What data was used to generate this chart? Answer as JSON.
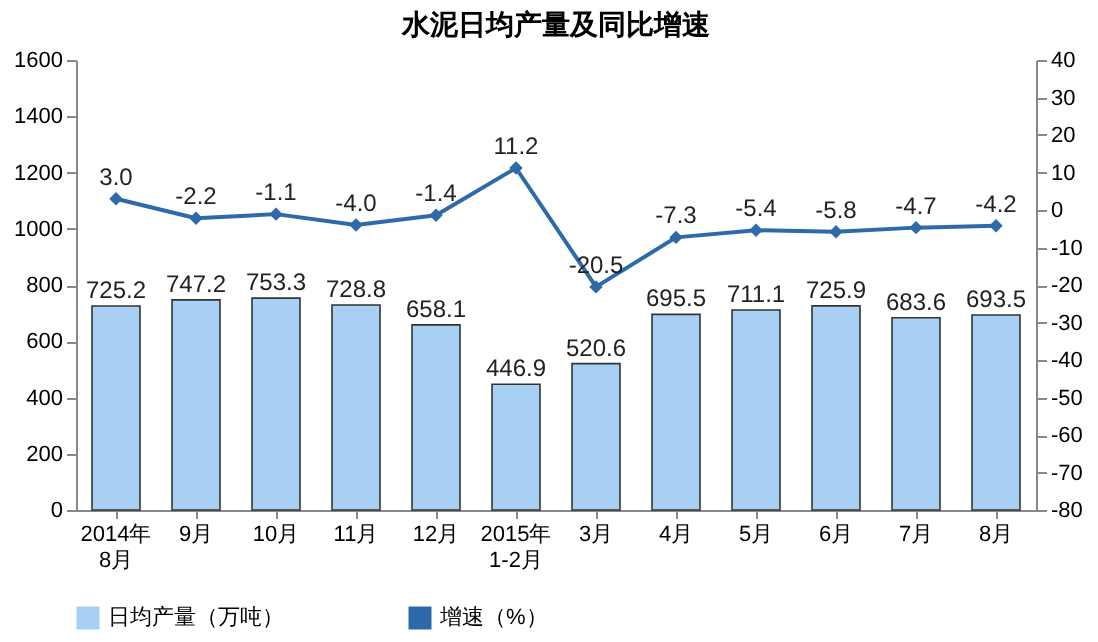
{
  "chart_data": {
    "type": "bar",
    "title": "水泥日均产量及同比增速",
    "categories": [
      "2014年\n8月",
      "9月",
      "10月",
      "11月",
      "12月",
      "2015年\n1-2月",
      "3月",
      "4月",
      "5月",
      "6月",
      "7月",
      "8月"
    ],
    "series": [
      {
        "name": "日均产量（万吨）",
        "color": "#a8d0f5",
        "values": [
          725.2,
          747.2,
          753.3,
          728.8,
          658.1,
          446.9,
          520.6,
          695.5,
          711.1,
          725.9,
          683.6,
          693.5
        ],
        "value_labels": [
          "725.2",
          "747.2",
          "753.3",
          "728.8",
          "658.1",
          "446.9",
          "520.6",
          "695.5",
          "711.1",
          "725.9",
          "683.6",
          "693.5"
        ]
      },
      {
        "name": "增速（%）",
        "type": "line",
        "axis": "y2",
        "color": "#2e6aa8",
        "values": [
          3.0,
          -2.2,
          -1.1,
          -4.0,
          -1.4,
          11.2,
          -20.5,
          -7.3,
          -5.4,
          -5.8,
          -4.7,
          -4.2
        ],
        "value_labels": [
          "3.0",
          "-2.2",
          "-1.1",
          "-4.0",
          "-1.4",
          "11.2",
          "-20.5",
          "-7.3",
          "-5.4",
          "-5.8",
          "-4.7",
          "-4.2"
        ]
      }
    ],
    "ylim": [
      0,
      1600
    ],
    "yticks": [
      0,
      200,
      400,
      600,
      800,
      1000,
      1200,
      1400,
      1600
    ],
    "y2lim": [
      -80,
      40
    ],
    "y2ticks": [
      -80,
      -70,
      -60,
      -50,
      -40,
      -30,
      -20,
      -10,
      0,
      10,
      20,
      30,
      40
    ],
    "legend": "bottom",
    "marker": "diamond"
  }
}
